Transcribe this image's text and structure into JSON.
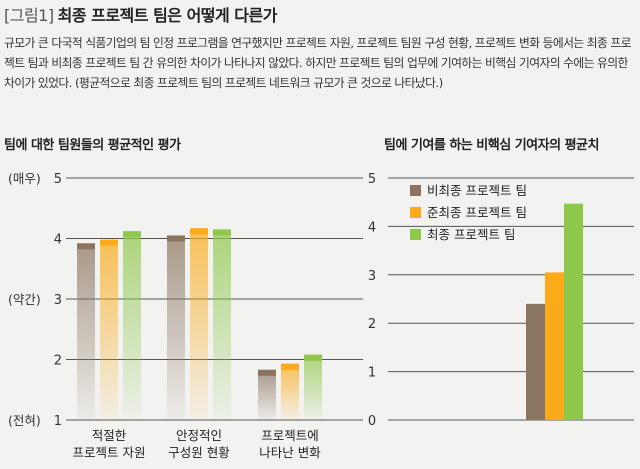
{
  "figure": {
    "tag": "[그림1]",
    "title": "최종 프로젝트 팀은 어떻게 다른가",
    "description": "규모가 큰 다국적 식품기업의 팀 인정 프로그램을 연구했지만 프로젝트 자원, 프로젝트 팀원 구성 현황, 프로젝트 변화 등에서는 최종 프로젝트 팀과 비최종 프로젝트 팀 간 유의한 차이가 나타나지 않았다. 하지만 프로젝트 팀의 업무에 기여하는 비핵심 기여자의 수에는 유의한 차이가 있었다. (평균적으로 최종 프로젝트 팀의 프로젝트 네트워크 규모가 큰 것으로 나타났다.)"
  },
  "colors": {
    "series": [
      "#8b7560",
      "#fbab1a",
      "#8dc84a"
    ],
    "grid": "#555555",
    "background": "#f2f2f0"
  },
  "chart_data": [
    {
      "type": "bar",
      "title": "팀에 대한 팀원들의 평균적인 평가",
      "categories": [
        [
          "적절한",
          "프로젝트 자원"
        ],
        [
          "안정적인",
          "구성원 현황"
        ],
        [
          "프로젝트에",
          "나타난 변화"
        ]
      ],
      "ylim": [
        1,
        5
      ],
      "yticks": [
        {
          "value": 5,
          "num": "5",
          "word": "(매우)"
        },
        {
          "value": 4,
          "num": "4",
          "word": ""
        },
        {
          "value": 3,
          "num": "3",
          "word": "(약간)"
        },
        {
          "value": 2,
          "num": "2",
          "word": ""
        },
        {
          "value": 1,
          "num": "1",
          "word": "(전혀)"
        }
      ],
      "series": [
        {
          "values": [
            3.92,
            4.05,
            1.83
          ]
        },
        {
          "values": [
            3.98,
            4.17,
            1.93
          ]
        },
        {
          "values": [
            4.12,
            4.15,
            2.08
          ]
        }
      ],
      "bar_style": "gradient-fade",
      "grid": true
    },
    {
      "type": "bar",
      "title": "팀에 기여를 하는 비핵심 기여자의 평균치",
      "categories": [
        ""
      ],
      "ylim": [
        0,
        5
      ],
      "yticks": [
        {
          "value": 5,
          "num": "5"
        },
        {
          "value": 4,
          "num": "4"
        },
        {
          "value": 3,
          "num": "3"
        },
        {
          "value": 2,
          "num": "2"
        },
        {
          "value": 1,
          "num": "1"
        },
        {
          "value": 0,
          "num": "0"
        }
      ],
      "series": [
        {
          "name": "비최종 프로젝트 팀",
          "values": [
            2.4
          ]
        },
        {
          "name": "준최종 프로젝트 팀",
          "values": [
            3.05
          ]
        },
        {
          "name": "최종 프로젝트 팀",
          "values": [
            4.47
          ]
        }
      ],
      "legend": "top-left",
      "grid": true
    }
  ]
}
